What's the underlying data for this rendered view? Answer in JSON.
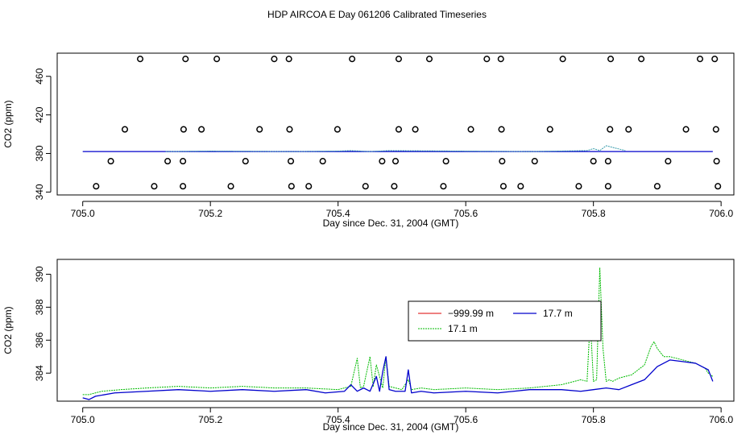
{
  "figure_title": "HDP AIRCOA E  Day 061206  Calibrated Timeseries",
  "colors": {
    "red": "#dd0000",
    "blue": "#0000cc",
    "green": "#00bb00",
    "teal": "#3399aa"
  },
  "chart_data": [
    {
      "type": "scatter",
      "xlabel": "Day since Dec. 31, 2004 (GMT)",
      "ylabel": "CO2 (ppm)",
      "xlim": [
        704.96,
        706.02
      ],
      "ylim": [
        337,
        484
      ],
      "xticks": [
        705.0,
        705.2,
        705.4,
        705.6,
        705.8,
        706.0
      ],
      "xtick_labels": [
        "705.0",
        "705.2",
        "705.4",
        "705.6",
        "705.8",
        "706.0"
      ],
      "yticks": [
        340,
        380,
        420,
        460
      ],
      "ytick_labels": [
        "340",
        "380",
        "420",
        "460"
      ],
      "points": {
        "x": [
          705.09,
          705.161,
          705.21,
          705.3,
          705.323,
          705.422,
          705.495,
          705.543,
          705.633,
          705.655,
          705.752,
          705.827,
          705.875,
          705.967,
          705.99,
          705.066,
          705.158,
          705.186,
          705.277,
          705.324,
          705.399,
          705.495,
          705.521,
          705.608,
          705.656,
          705.732,
          705.826,
          705.855,
          705.945,
          705.992,
          705.044,
          705.133,
          705.157,
          705.255,
          705.326,
          705.376,
          705.469,
          705.49,
          705.569,
          705.657,
          705.708,
          705.8,
          705.823,
          705.917,
          705.993,
          705.021,
          705.112,
          705.157,
          705.232,
          705.327,
          705.354,
          705.443,
          705.488,
          705.565,
          705.659,
          705.686,
          705.777,
          705.823,
          705.9,
          705.995
        ],
        "y": [
          478,
          478,
          478,
          478,
          478,
          478,
          478,
          478,
          478,
          478,
          478,
          478,
          478,
          478,
          478,
          405,
          405,
          405,
          405,
          405,
          405,
          405,
          405,
          405,
          405,
          405,
          405,
          405,
          405,
          405,
          372,
          372,
          372,
          372,
          372,
          372,
          372,
          372,
          372,
          372,
          372,
          372,
          372,
          372,
          372,
          346,
          346,
          346,
          346,
          346,
          346,
          346,
          346,
          346,
          346,
          346,
          346,
          346,
          346,
          346
        ]
      },
      "series": [
        {
          "x": [
            705.0,
            705.987
          ],
          "y": [
            382,
            382
          ]
        },
        {
          "x": [
            705.13,
            705.2,
            705.33,
            705.4,
            705.42,
            705.45,
            705.48,
            705.7,
            705.79,
            705.8,
            705.81,
            705.82,
            705.85
          ],
          "y": [
            382,
            382.5,
            382,
            382.5,
            383,
            382,
            383,
            382,
            383,
            385,
            383,
            388,
            383
          ]
        }
      ]
    },
    {
      "type": "line",
      "xlabel": "Day since Dec. 31, 2004 (GMT)",
      "ylabel": "CO2 (ppm)",
      "xlim": [
        704.96,
        706.02
      ],
      "ylim": [
        382.3,
        390.9
      ],
      "xticks": [
        705.0,
        705.2,
        705.4,
        705.6,
        705.8,
        706.0
      ],
      "xtick_labels": [
        "705.0",
        "705.2",
        "705.4",
        "705.6",
        "705.8",
        "706.0"
      ],
      "yticks": [
        384,
        386,
        388,
        390
      ],
      "ytick_labels": [
        "384",
        "386",
        "388",
        "390"
      ],
      "legend": {
        "position": "center-right",
        "entries": [
          {
            "name": "−999.99 m",
            "color": "#dd0000"
          },
          {
            "name": "17.7 m",
            "color": "#0000cc"
          },
          {
            "name": "17.1 m",
            "color": "#00bb00"
          }
        ]
      },
      "series": [
        {
          "name": "−999.99 m",
          "x": [],
          "y": []
        },
        {
          "name": "17.7 m",
          "x": [
            705.0,
            705.01,
            705.02,
            705.05,
            705.1,
            705.15,
            705.2,
            705.25,
            705.3,
            705.35,
            705.38,
            705.41,
            705.42,
            705.43,
            705.44,
            705.45,
            705.46,
            705.465,
            705.47,
            705.475,
            705.48,
            705.49,
            705.505,
            705.51,
            705.515,
            705.53,
            705.55,
            705.6,
            705.65,
            705.7,
            705.75,
            705.78,
            705.8,
            705.82,
            705.84,
            705.86,
            705.88,
            705.9,
            705.92,
            705.94,
            705.96,
            705.97,
            705.98,
            705.987
          ],
          "y": [
            382.5,
            382.4,
            382.6,
            382.8,
            382.9,
            383.0,
            382.9,
            383.0,
            382.9,
            383.0,
            382.8,
            382.9,
            383.3,
            382.9,
            383.1,
            382.9,
            383.8,
            382.9,
            384.1,
            385.0,
            383.0,
            382.9,
            382.9,
            384.2,
            382.8,
            382.9,
            382.8,
            382.9,
            382.8,
            383.0,
            383.0,
            382.9,
            383.0,
            383.1,
            383.0,
            383.3,
            383.6,
            384.4,
            384.8,
            384.7,
            384.6,
            384.4,
            384.2,
            383.5
          ]
        },
        {
          "name": "17.1 m",
          "x": [
            705.0,
            705.01,
            705.03,
            705.06,
            705.1,
            705.15,
            705.2,
            705.25,
            705.3,
            705.35,
            705.4,
            705.42,
            705.43,
            705.435,
            705.44,
            705.45,
            705.455,
            705.46,
            705.47,
            705.475,
            705.48,
            705.49,
            705.5,
            705.51,
            705.515,
            705.53,
            705.55,
            705.6,
            705.65,
            705.7,
            705.75,
            705.77,
            705.78,
            705.79,
            705.795,
            705.8,
            705.805,
            705.81,
            705.815,
            705.82,
            705.825,
            705.83,
            705.84,
            705.86,
            705.88,
            705.89,
            705.895,
            705.9,
            705.91,
            705.92,
            705.94,
            705.96,
            705.975,
            705.98,
            705.987
          ],
          "y": [
            382.7,
            382.7,
            382.9,
            383.0,
            383.1,
            383.2,
            383.1,
            383.2,
            383.1,
            383.1,
            383.0,
            383.2,
            384.9,
            383.1,
            383.2,
            385.0,
            383.2,
            384.5,
            383.1,
            385.0,
            383.2,
            383.1,
            383.0,
            383.6,
            383.0,
            383.1,
            383.0,
            383.1,
            383.0,
            383.1,
            383.3,
            383.5,
            383.6,
            383.5,
            387.3,
            383.5,
            383.6,
            390.4,
            385.5,
            383.5,
            383.6,
            383.5,
            383.7,
            383.9,
            384.5,
            385.6,
            385.9,
            385.5,
            385.0,
            385.0,
            384.8,
            384.6,
            384.3,
            384.0,
            383.8
          ]
        }
      ]
    }
  ]
}
